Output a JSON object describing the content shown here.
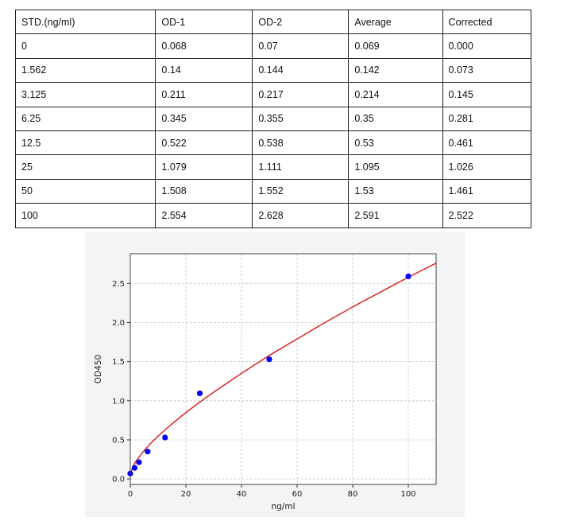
{
  "table": {
    "headers": [
      "STD.(ng/ml)",
      "OD-1",
      "OD-2",
      "Average",
      "Corrected"
    ],
    "rows": [
      [
        "0",
        "0.068",
        "0.07",
        "0.069",
        "0.000"
      ],
      [
        "1.562",
        "0.14",
        "0.144",
        "0.142",
        "0.073"
      ],
      [
        "3.125",
        "0.211",
        "0.217",
        "0.214",
        "0.145"
      ],
      [
        "6.25",
        "0.345",
        "0.355",
        "0.35",
        "0.281"
      ],
      [
        "12.5",
        "0.522",
        "0.538",
        "0.53",
        "0.461"
      ],
      [
        "25",
        "1.079",
        "1.111",
        "1.095",
        "1.026"
      ],
      [
        "50",
        "1.508",
        "1.552",
        "1.53",
        "1.461"
      ],
      [
        "100",
        "2.554",
        "2.628",
        "2.591",
        "2.522"
      ]
    ]
  },
  "chart_data": {
    "type": "scatter",
    "xlabel": "ng/ml",
    "ylabel": "OD450",
    "xlim": [
      0,
      110
    ],
    "ylim": [
      -0.07,
      2.88
    ],
    "xticks": [
      "0",
      "20",
      "40",
      "60",
      "80",
      "100"
    ],
    "yticks": [
      "0.0",
      "0.5",
      "1.0",
      "1.5",
      "2.0",
      "2.5"
    ],
    "grid": true,
    "series": [
      {
        "kind": "points",
        "color": "#0000ff",
        "x": [
          0,
          1.562,
          3.125,
          6.25,
          12.5,
          25,
          50,
          100
        ],
        "y": [
          0.069,
          0.142,
          0.214,
          0.35,
          0.53,
          1.095,
          1.53,
          2.591
        ]
      },
      {
        "kind": "fit-line",
        "color": "#d62728",
        "x": [
          0,
          1,
          2,
          4,
          6,
          8,
          10,
          15,
          20,
          25,
          30,
          40,
          50,
          60,
          70,
          80,
          90,
          100,
          110
        ],
        "y": [
          0.07,
          0.163,
          0.223,
          0.321,
          0.404,
          0.479,
          0.548,
          0.705,
          0.848,
          0.983,
          1.11,
          1.35,
          1.58,
          1.79,
          2.0,
          2.2,
          2.39,
          2.58,
          2.76
        ]
      }
    ]
  }
}
